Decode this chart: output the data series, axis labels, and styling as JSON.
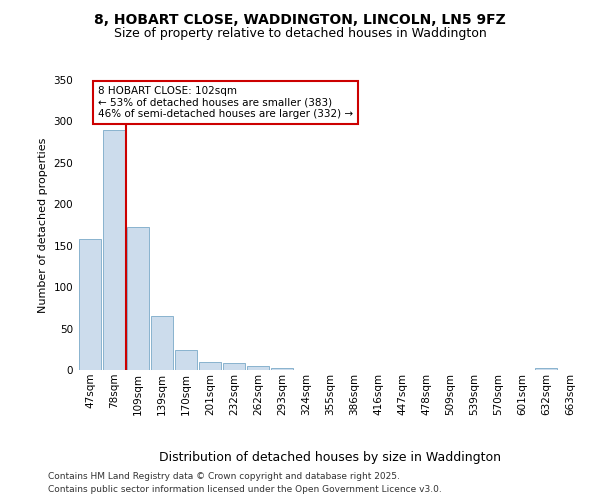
{
  "title_line1": "8, HOBART CLOSE, WADDINGTON, LINCOLN, LN5 9FZ",
  "title_line2": "Size of property relative to detached houses in Waddington",
  "xlabel": "Distribution of detached houses by size in Waddington",
  "ylabel": "Number of detached properties",
  "categories": [
    "47sqm",
    "78sqm",
    "109sqm",
    "139sqm",
    "170sqm",
    "201sqm",
    "232sqm",
    "262sqm",
    "293sqm",
    "324sqm",
    "355sqm",
    "386sqm",
    "416sqm",
    "447sqm",
    "478sqm",
    "509sqm",
    "539sqm",
    "570sqm",
    "601sqm",
    "632sqm",
    "663sqm"
  ],
  "values": [
    158,
    290,
    172,
    65,
    24,
    10,
    8,
    5,
    2,
    0,
    0,
    0,
    0,
    0,
    0,
    0,
    0,
    0,
    0,
    3,
    0
  ],
  "bar_color": "#ccdcec",
  "bar_edge_color": "#7aaac8",
  "ref_line_color": "#cc0000",
  "ref_line_x": 1.5,
  "annotation_text": "8 HOBART CLOSE: 102sqm\n← 53% of detached houses are smaller (383)\n46% of semi-detached houses are larger (332) →",
  "annotation_box_edge_color": "#cc0000",
  "ylim": [
    0,
    350
  ],
  "yticks": [
    0,
    50,
    100,
    150,
    200,
    250,
    300,
    350
  ],
  "footer_line1": "Contains HM Land Registry data © Crown copyright and database right 2025.",
  "footer_line2": "Contains public sector information licensed under the Open Government Licence v3.0.",
  "bg_color": "#ffffff",
  "title1_fontsize": 10,
  "title2_fontsize": 9,
  "ylabel_fontsize": 8,
  "xlabel_fontsize": 9,
  "tick_fontsize": 7.5,
  "annotation_fontsize": 7.5,
  "footer_fontsize": 6.5
}
